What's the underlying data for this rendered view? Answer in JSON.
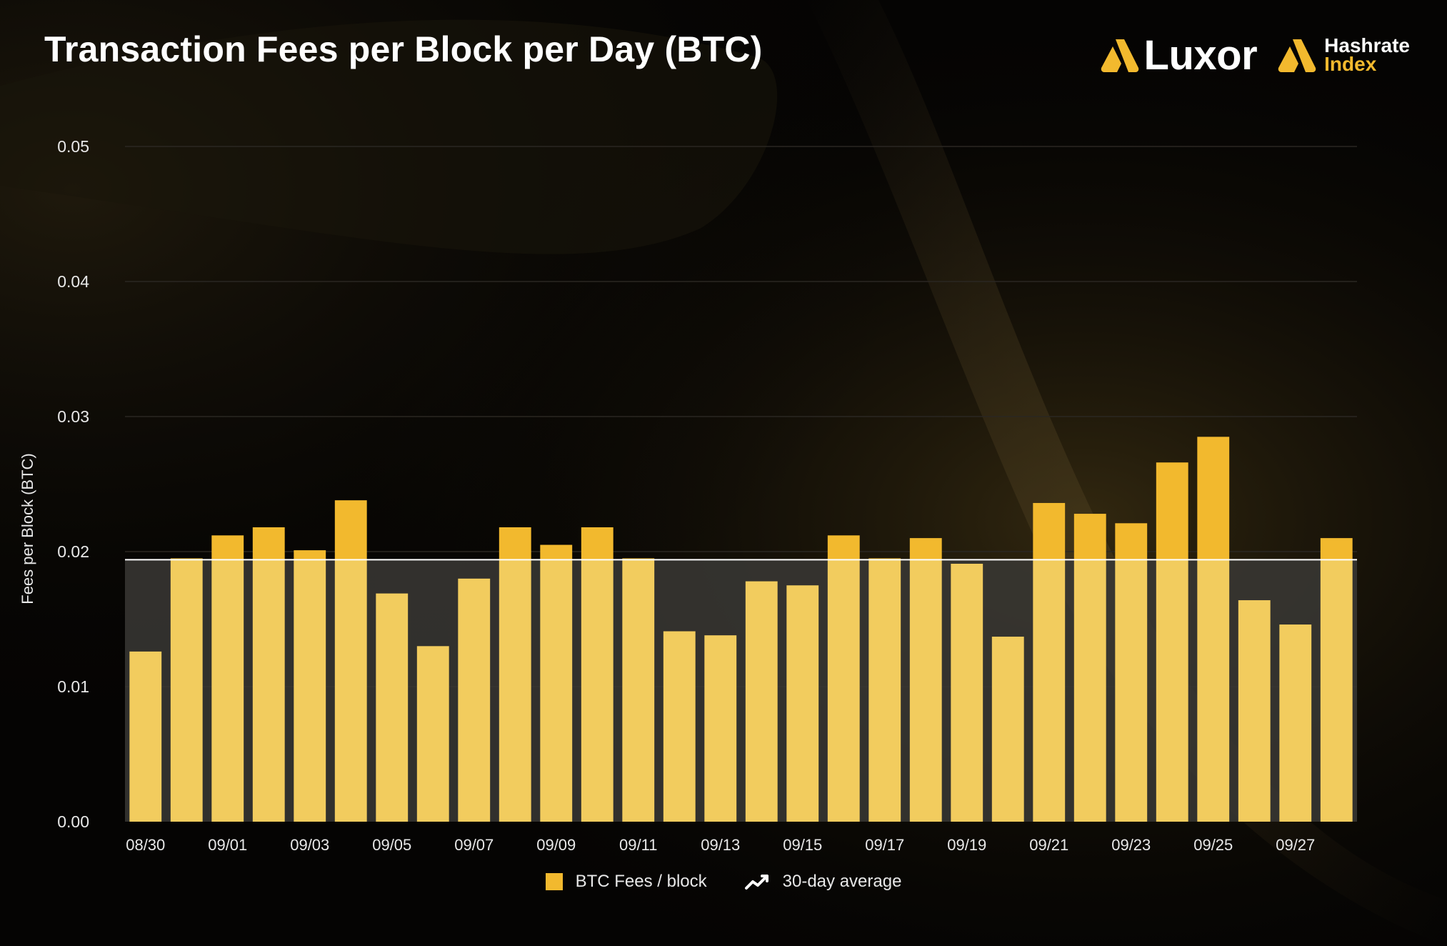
{
  "title": "Transaction Fees per Block per Day (BTC)",
  "brand": {
    "luxor": "Luxor",
    "hashrate_line1": "Hashrate",
    "hashrate_line2": "Index"
  },
  "colors": {
    "bar": "#f2b92e",
    "bar_below_avg": "#f2cc5e",
    "average_line": "#ffffff",
    "below_avg_shade": "#3a3835",
    "grid": "#2a2722",
    "text": "#e8e8e8"
  },
  "icons": {
    "brand_mark": "luxor-mark-icon",
    "legend_line": "line-chart-icon"
  },
  "legend": {
    "bar_label": "BTC Fees / block",
    "line_label": "30-day average"
  },
  "chart_data": {
    "type": "bar",
    "title": "Transaction Fees per Block per Day (BTC)",
    "ylabel": "Fees per Block (BTC)",
    "xlabel": "",
    "ylim": [
      0,
      0.05
    ],
    "yticks": [
      "0.00",
      "0.01",
      "0.02",
      "0.03",
      "0.04",
      "0.05"
    ],
    "grid": true,
    "legend_position": "bottom-center",
    "categories": [
      "08/30",
      "08/31",
      "09/01",
      "09/02",
      "09/03",
      "09/04",
      "09/05",
      "09/06",
      "09/07",
      "09/08",
      "09/09",
      "09/10",
      "09/11",
      "09/12",
      "09/13",
      "09/14",
      "09/15",
      "09/16",
      "09/17",
      "09/18",
      "09/19",
      "09/20",
      "09/21",
      "09/22",
      "09/23",
      "09/24",
      "09/25",
      "09/26",
      "09/27",
      "09/28"
    ],
    "tick_labels": [
      "08/30",
      "09/01",
      "09/03",
      "09/05",
      "09/07",
      "09/09",
      "09/11",
      "09/13",
      "09/15",
      "09/17",
      "09/19",
      "09/21",
      "09/23",
      "09/25",
      "09/27"
    ],
    "series": [
      {
        "name": "BTC Fees / block",
        "type": "bar",
        "values": [
          0.0126,
          0.0195,
          0.0212,
          0.0218,
          0.0201,
          0.0238,
          0.0169,
          0.013,
          0.018,
          0.0218,
          0.0205,
          0.0218,
          0.0195,
          0.0141,
          0.0138,
          0.0178,
          0.0175,
          0.0212,
          0.0195,
          0.021,
          0.0191,
          0.0137,
          0.0236,
          0.0228,
          0.0221,
          0.0266,
          0.0285,
          0.0164,
          0.0146,
          0.021
        ]
      },
      {
        "name": "30-day average",
        "type": "line",
        "value": 0.0194
      }
    ]
  }
}
